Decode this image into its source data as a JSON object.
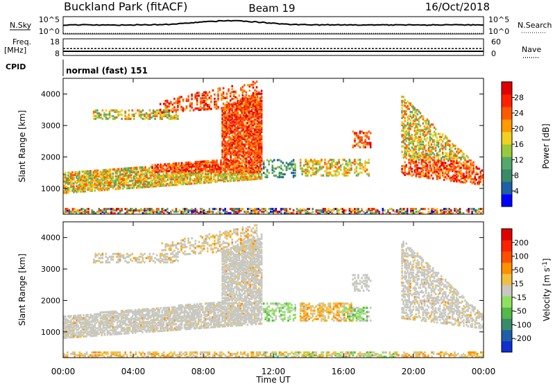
{
  "header": {
    "station": "Buckland Park (fitACF)",
    "beam": "Beam 19",
    "date": "16/Oct/2018"
  },
  "status_panels": {
    "nsky_label": "N.Sky",
    "nsky_ticks": [
      "10^5",
      "10^0"
    ],
    "nsearch_label": "N.Search",
    "nsearch_ticks": [
      "10^5",
      "10^0"
    ],
    "freq_label_line1": "Freq.",
    "freq_label_line2": "[MHz]",
    "freq_ticks": [
      "18",
      "8"
    ],
    "nave_label": "Nave",
    "nave_ticks": [
      "60",
      "0"
    ],
    "cpid_label": "CPID",
    "cpid_value": "normal (fast) 151"
  },
  "colors": {
    "power_scale": [
      "#0000ff",
      "#1f5fa8",
      "#3a8a6a",
      "#54a86a",
      "#9ac83c",
      "#f0d020",
      "#ff9a00",
      "#ff5a00",
      "#ff2000",
      "#e00000"
    ],
    "velocity_scale": [
      "#1030d0",
      "#1f5fa8",
      "#3a8a6a",
      "#54b84a",
      "#8ee060",
      "#c8c8c0",
      "#f0c040",
      "#ff9000",
      "#ff5000",
      "#ff2000",
      "#e00000"
    ],
    "ground_scatter": "#c8c8c0"
  },
  "chart_data": [
    {
      "type": "heatmap",
      "name": "power",
      "xlabel": "",
      "ylabel": "Slant Range [km]",
      "xlim": [
        "00:00",
        "24:00"
      ],
      "ylim": [
        180,
        4500
      ],
      "y_ticks": [
        1000,
        2000,
        3000,
        4000
      ],
      "colorbar": {
        "label": "Power [dB]",
        "range": [
          0,
          30
        ],
        "ticks": [
          "4",
          "8",
          "12",
          "16",
          "20",
          "24",
          "28"
        ]
      },
      "features": [
        {
          "time_start": "00:00",
          "time_end": "11:00",
          "range_km": [
            900,
            2000
          ],
          "power_db": "12-28"
        },
        {
          "time_start": "01:40",
          "time_end": "06:30",
          "range_km": [
            3200,
            3500
          ],
          "power_db": "10-20"
        },
        {
          "time_start": "05:30",
          "time_end": "11:00",
          "range_km": [
            3500,
            4400
          ],
          "power_db": "16-30"
        },
        {
          "time_start": "11:20",
          "time_end": "17:30",
          "range_km": [
            1400,
            1900
          ],
          "power_db": "8-20"
        },
        {
          "time_start": "19:30",
          "time_end": "24:00",
          "range_km": [
            1100,
            4000
          ],
          "power_db": "12-28"
        },
        {
          "time_start": "00:00",
          "time_end": "24:00",
          "range_km": [
            200,
            350
          ],
          "power_db": "4-28"
        }
      ]
    },
    {
      "type": "heatmap",
      "name": "velocity",
      "xlabel": "Time UT",
      "ylabel": "Slant Range [km]",
      "xlim": [
        "00:00",
        "24:00"
      ],
      "ylim": [
        180,
        4500
      ],
      "x_ticks": [
        "00:00",
        "04:00",
        "08:00",
        "12:00",
        "16:00",
        "20:00",
        "00:00"
      ],
      "y_ticks": [
        1000,
        2000,
        3000,
        4000
      ],
      "colorbar": {
        "label": "Velocity [m s",
        "label_superscript": "-1",
        "label_close": "]",
        "range": [
          -250,
          250
        ],
        "ticks": [
          "200",
          "100",
          "50",
          "15",
          "-15",
          "-50",
          "-100",
          "-200"
        ]
      },
      "features": [
        {
          "time_start": "00:00",
          "time_end": "11:00",
          "range_km": [
            800,
            2100
          ],
          "velocity": "ground scatter (-15 to 15)"
        },
        {
          "time_start": "05:30",
          "time_end": "11:00",
          "range_km": [
            3300,
            4400
          ],
          "velocity": "-50 to -15"
        },
        {
          "time_start": "11:20",
          "time_end": "17:30",
          "range_km": [
            1300,
            2000
          ],
          "velocity": "-50 to 50"
        },
        {
          "time_start": "19:30",
          "time_end": "24:00",
          "range_km": [
            1100,
            4000
          ],
          "velocity": "ground scatter (-15 to 15)"
        },
        {
          "time_start": "00:00",
          "time_end": "24:00",
          "range_km": [
            200,
            350
          ],
          "velocity": "-100 to 50"
        }
      ]
    }
  ]
}
